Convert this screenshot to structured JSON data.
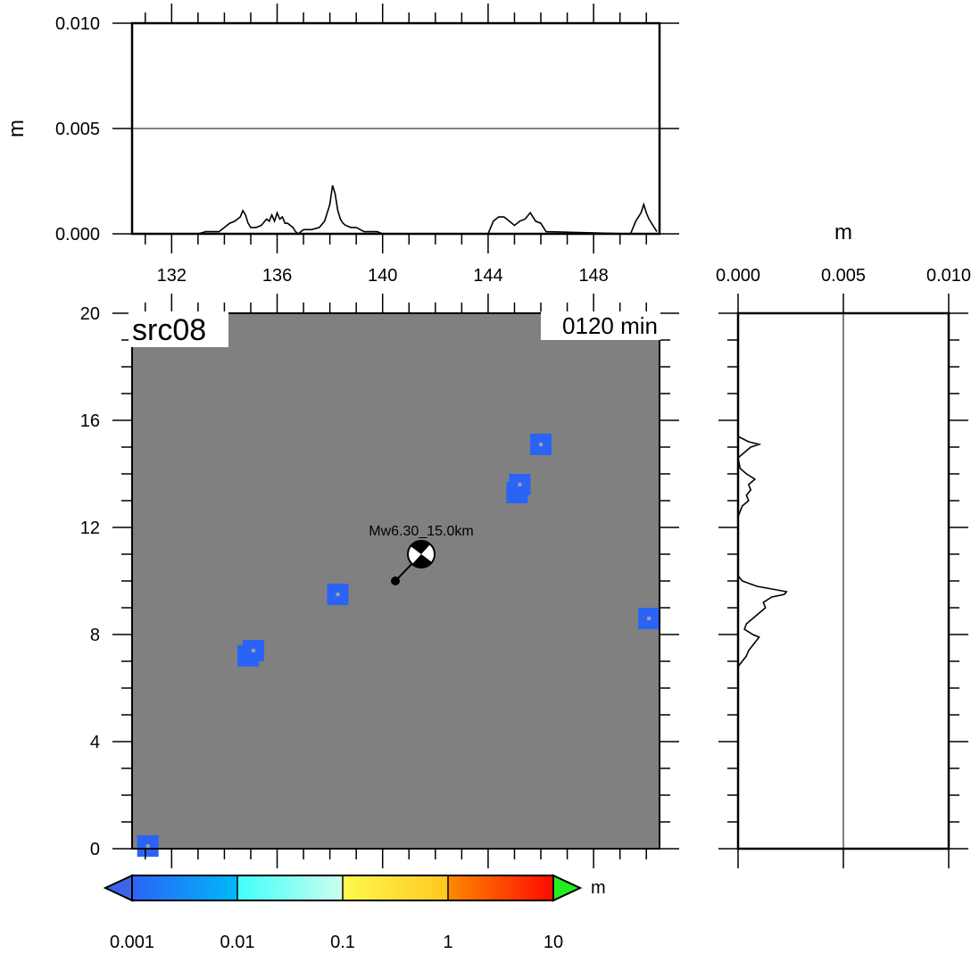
{
  "chart_data": [
    {
      "panel": "map",
      "type": "heatmap",
      "title_left": "src08",
      "title_right": "0120 min",
      "xlim": [
        130.5,
        150.5
      ],
      "ylim": [
        0,
        20
      ],
      "xticks": [
        "132",
        "136",
        "140",
        "144",
        "148"
      ],
      "yticks": [
        "0",
        "4",
        "8",
        "12",
        "16",
        "20"
      ],
      "background_color": "#808080",
      "patch_color": "#2a64f6",
      "patches": [
        {
          "x": 131.1,
          "y": 0.1,
          "value": 0.002
        },
        {
          "x": 134.9,
          "y": 7.2,
          "value": 0.002
        },
        {
          "x": 135.1,
          "y": 7.4,
          "value": 0.002
        },
        {
          "x": 138.3,
          "y": 9.5,
          "value": 0.002
        },
        {
          "x": 145.1,
          "y": 13.3,
          "value": 0.002
        },
        {
          "x": 145.2,
          "y": 13.6,
          "value": 0.002
        },
        {
          "x": 146.0,
          "y": 15.1,
          "value": 0.002
        },
        {
          "x": 150.1,
          "y": 8.6,
          "value": 0.002
        }
      ],
      "annotation": {
        "label": "Mw6.30_15.0km",
        "epicenter": {
          "x": 140.4,
          "y": 10.0
        },
        "beachball": {
          "x": 141.4,
          "y": 11.0
        }
      }
    },
    {
      "panel": "top-profile",
      "type": "line",
      "ylabel": "m",
      "ylim": [
        0,
        0.01
      ],
      "yticks": [
        "0.000",
        "0.005",
        "0.010"
      ],
      "xlim": [
        130.5,
        150.5
      ],
      "xticks": [
        "132",
        "136",
        "140",
        "144",
        "148"
      ],
      "grid_y": [
        0.005
      ],
      "x": [
        133.0,
        133.3,
        133.6,
        133.8,
        134.0,
        134.2,
        134.4,
        134.6,
        134.7,
        134.8,
        134.9,
        135.0,
        135.2,
        135.4,
        135.6,
        135.7,
        135.8,
        135.9,
        136.0,
        136.1,
        136.2,
        136.3,
        136.4,
        136.6,
        136.7,
        136.8,
        137.0,
        137.3,
        137.6,
        137.8,
        137.9,
        138.0,
        138.1,
        138.2,
        138.3,
        138.4,
        138.5,
        138.6,
        138.8,
        139.0,
        139.3,
        139.6,
        139.8,
        140.0,
        140.2,
        144.0,
        144.2,
        144.4,
        144.6,
        144.8,
        145.0,
        145.2,
        145.4,
        145.6,
        145.8,
        146.0,
        146.2,
        149.4,
        149.6,
        149.8,
        149.9,
        150.0,
        150.1,
        150.3,
        150.4
      ],
      "values": [
        0.0,
        0.0001,
        0.0001,
        0.0001,
        0.0003,
        0.0005,
        0.0006,
        0.0008,
        0.0011,
        0.0009,
        0.0005,
        0.0003,
        0.0003,
        0.0004,
        0.0007,
        0.0006,
        0.0009,
        0.0006,
        0.001,
        0.0007,
        0.0008,
        0.0005,
        0.0005,
        0.0003,
        0.0001,
        0.0,
        0.0002,
        0.0002,
        0.0003,
        0.0006,
        0.001,
        0.0014,
        0.0023,
        0.0019,
        0.0011,
        0.0007,
        0.0005,
        0.0004,
        0.0003,
        0.0003,
        0.0001,
        0.0001,
        0.0001,
        0.0,
        0.0,
        0.0,
        0.0006,
        0.0008,
        0.0008,
        0.0006,
        0.0004,
        0.0006,
        0.0007,
        0.001,
        0.0006,
        0.0005,
        0.0001,
        0.0,
        0.0006,
        0.001,
        0.0014,
        0.001,
        0.0007,
        0.0003,
        0.0001
      ]
    },
    {
      "panel": "right-profile",
      "type": "line",
      "xlabel": "m",
      "xlim": [
        0,
        0.01
      ],
      "xticks": [
        "0.000",
        "0.005",
        "0.010"
      ],
      "ylim": [
        0,
        20
      ],
      "grid_x": [
        0.005
      ],
      "y": [
        6.8,
        7.0,
        7.2,
        7.4,
        7.6,
        7.8,
        7.9,
        8.0,
        8.2,
        8.4,
        8.6,
        8.8,
        9.0,
        9.2,
        9.4,
        9.5,
        9.6,
        9.7,
        9.8,
        10.0,
        10.2,
        12.4,
        12.8,
        13.0,
        13.2,
        13.4,
        13.6,
        13.8,
        14.0,
        14.2,
        14.6,
        14.8,
        15.0,
        15.1,
        15.2,
        15.4
      ],
      "values": [
        0.0,
        0.0002,
        0.0004,
        0.0005,
        0.0007,
        0.0009,
        0.001,
        0.0007,
        0.0003,
        0.0004,
        0.0007,
        0.001,
        0.0013,
        0.0012,
        0.0016,
        0.0022,
        0.0023,
        0.0016,
        0.0009,
        0.0002,
        0.0,
        0.0,
        0.0002,
        0.0005,
        0.0004,
        0.0006,
        0.0005,
        0.0008,
        0.0004,
        0.0001,
        0.0,
        0.0003,
        0.0006,
        0.001,
        0.0005,
        0.0
      ]
    },
    {
      "panel": "colorbar",
      "type": "colorbar",
      "unit": "m",
      "labels": [
        "0.001",
        "0.01",
        "0.1",
        "1",
        "10"
      ],
      "colors": [
        "#2a64f6",
        "#00b8f8",
        "#40fff8",
        "#ccffee",
        "#fff850",
        "#ffc820",
        "#fc9a00",
        "#ff5a00",
        "#ff0a00"
      ],
      "under_color": "#3c64e8",
      "over_color": "#22ee22"
    }
  ]
}
